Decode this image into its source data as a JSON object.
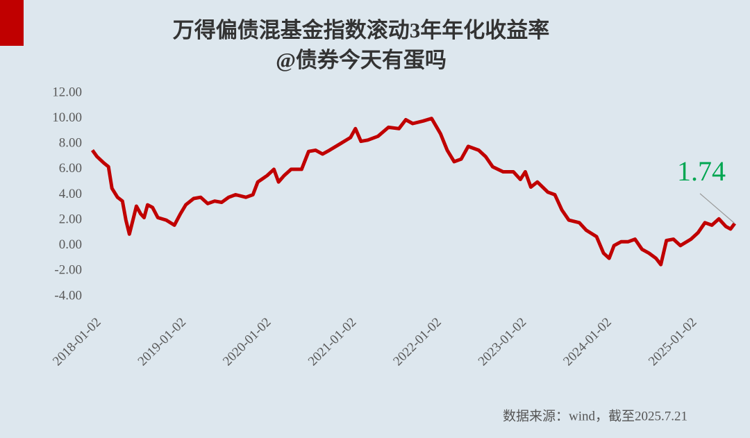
{
  "chart_data": {
    "type": "line",
    "title": "万得偏债混基金指数滚动3年年化收益率",
    "subtitle": "@债券今天有蛋吗",
    "source": "数据来源：wind，截至2025.7.21",
    "x": [
      "2018-01-02",
      "2018-01-22",
      "2018-02-20",
      "2018-03-12",
      "2018-03-27",
      "2018-04-20",
      "2018-05-11",
      "2018-05-26",
      "2018-06-10",
      "2018-06-25",
      "2018-07-10",
      "2018-07-28",
      "2018-08-12",
      "2018-08-27",
      "2018-09-17",
      "2018-10-10",
      "2018-11-15",
      "2018-12-20",
      "2019-01-15",
      "2019-02-07",
      "2019-03-13",
      "2019-04-12",
      "2019-05-12",
      "2019-06-11",
      "2019-07-11",
      "2019-08-10",
      "2019-09-09",
      "2019-10-23",
      "2019-11-22",
      "2019-12-13",
      "2020-01-22",
      "2020-02-20",
      "2020-03-11",
      "2020-04-04",
      "2020-05-04",
      "2020-06-18",
      "2020-07-18",
      "2020-08-17",
      "2020-09-16",
      "2020-10-16",
      "2020-11-30",
      "2021-01-14",
      "2021-02-04",
      "2021-02-28",
      "2021-03-29",
      "2021-05-12",
      "2021-06-26",
      "2021-08-10",
      "2021-09-08",
      "2021-10-08",
      "2021-11-22",
      "2021-12-28",
      "2022-02-04",
      "2022-03-05",
      "2022-04-04",
      "2022-05-04",
      "2022-06-03",
      "2022-07-18",
      "2022-08-17",
      "2022-09-16",
      "2022-10-31",
      "2022-12-14",
      "2023-01-13",
      "2023-02-03",
      "2023-02-27",
      "2023-03-27",
      "2023-05-11",
      "2023-06-10",
      "2023-07-10",
      "2023-08-09",
      "2023-09-23",
      "2023-10-23",
      "2023-12-06",
      "2024-01-05",
      "2024-01-29",
      "2024-02-19",
      "2024-03-20",
      "2024-04-19",
      "2024-05-19",
      "2024-06-18",
      "2024-07-18",
      "2024-08-17",
      "2024-09-07",
      "2024-10-01",
      "2024-10-31",
      "2024-11-30",
      "2025-01-14",
      "2025-02-13",
      "2025-03-15",
      "2025-04-14",
      "2025-05-14",
      "2025-06-13",
      "2025-07-03",
      "2025-07-21"
    ],
    "series": [
      {
        "color": "#c00000",
        "values": [
          7.5,
          7.0,
          6.5,
          6.2,
          4.5,
          3.8,
          3.5,
          2.0,
          0.9,
          2.0,
          3.1,
          2.5,
          2.2,
          3.2,
          3.0,
          2.2,
          2.0,
          1.6,
          2.5,
          3.2,
          3.7,
          3.8,
          3.3,
          3.5,
          3.4,
          3.8,
          4.0,
          3.8,
          4.0,
          5.0,
          5.5,
          6.0,
          5.0,
          5.5,
          6.0,
          6.0,
          7.4,
          7.5,
          7.2,
          7.5,
          8.0,
          8.5,
          9.2,
          8.2,
          8.3,
          8.6,
          9.3,
          9.2,
          9.9,
          9.6,
          9.8,
          10.0,
          8.8,
          7.5,
          6.6,
          6.8,
          7.8,
          7.5,
          7.0,
          6.2,
          5.8,
          5.8,
          5.2,
          5.8,
          4.6,
          5.0,
          4.2,
          4.0,
          2.8,
          2.0,
          1.8,
          1.2,
          0.7,
          -0.6,
          -1.0,
          0.0,
          0.3,
          0.3,
          0.5,
          -0.3,
          -0.6,
          -1.0,
          -1.5,
          0.4,
          0.5,
          0.0,
          0.5,
          1.0,
          1.8,
          1.6,
          2.1,
          1.5,
          1.3,
          1.74
        ]
      }
    ],
    "label_color": "#00a651",
    "xlim": [
      "2018-01-02",
      "2025-07-21"
    ],
    "xticks": [
      "2018-01-02",
      "2019-01-02",
      "2020-01-02",
      "2021-01-02",
      "2022-01-02",
      "2023-01-02",
      "2024-01-02",
      "2025-01-02"
    ],
    "ylim": [
      -4,
      12
    ],
    "yticks": [
      {
        "value": -4,
        "label": "-4.00"
      },
      {
        "value": -2,
        "label": "-2.00"
      },
      {
        "value": 0,
        "label": "0.00"
      },
      {
        "value": 2,
        "label": "2.00"
      },
      {
        "value": 4,
        "label": "4.00"
      },
      {
        "value": 6,
        "label": "6.00"
      },
      {
        "value": 8,
        "label": "8.00"
      },
      {
        "value": 10,
        "label": "10.00"
      },
      {
        "value": 12,
        "label": "12.00"
      }
    ],
    "grid": false
  }
}
